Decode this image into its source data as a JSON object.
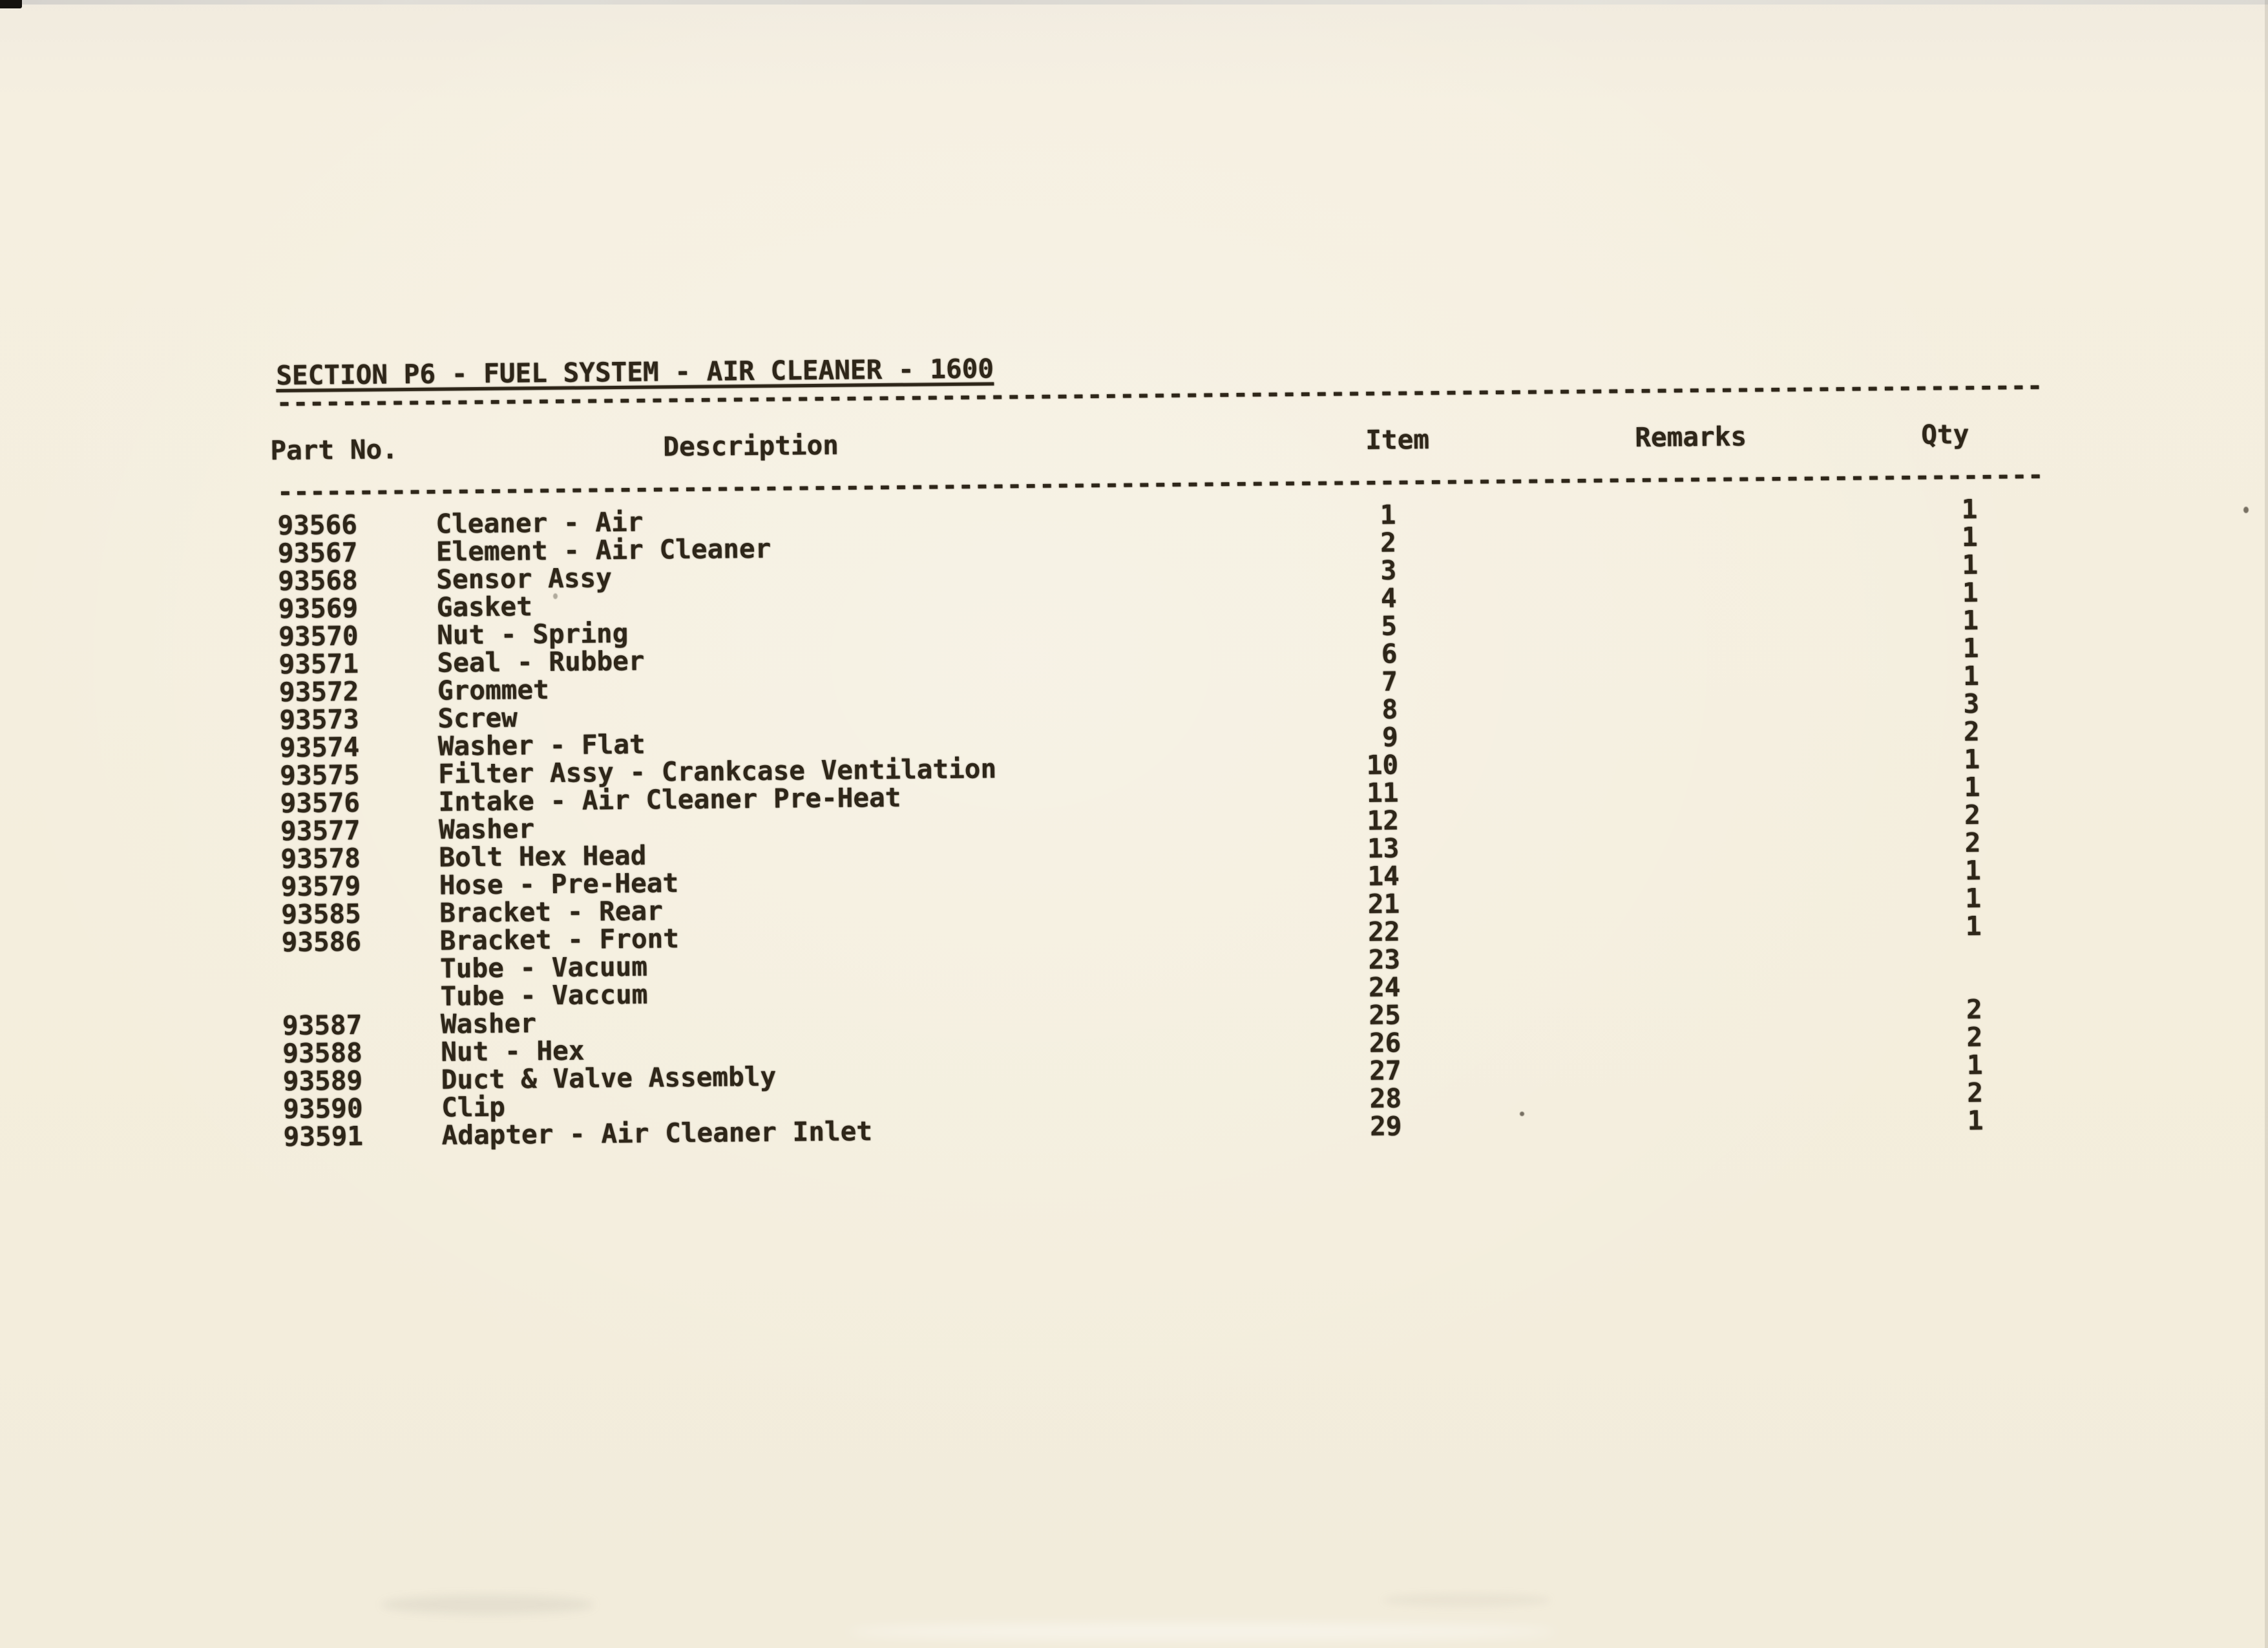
{
  "colors": {
    "paper": "#f4eede",
    "ink": "#2e2619"
  },
  "doc": {
    "title": "SECTION P6  -  FUEL SYSTEM - AIR CLEANER - 1600",
    "separator": "-------------------------------------------------------------------------------------------------------------"
  },
  "table": {
    "headers": {
      "part_no": "Part No.",
      "description": "Description",
      "item": "Item",
      "remarks": "Remarks",
      "qty": "Qty"
    },
    "rows": [
      {
        "part_no": "93566",
        "description": "Cleaner - Air",
        "item": "1",
        "remarks": "",
        "qty": "1"
      },
      {
        "part_no": "93567",
        "description": "Element - Air Cleaner",
        "item": "2",
        "remarks": "",
        "qty": "1"
      },
      {
        "part_no": "93568",
        "description": "Sensor Assy",
        "item": "3",
        "remarks": "",
        "qty": "1"
      },
      {
        "part_no": "93569",
        "description": "Gasket",
        "item": "4",
        "remarks": "",
        "qty": "1"
      },
      {
        "part_no": "93570",
        "description": "Nut - Spring",
        "item": "5",
        "remarks": "",
        "qty": "1"
      },
      {
        "part_no": "93571",
        "description": "Seal - Rubber",
        "item": "6",
        "remarks": "",
        "qty": "1"
      },
      {
        "part_no": "93572",
        "description": "Grommet",
        "item": "7",
        "remarks": "",
        "qty": "1"
      },
      {
        "part_no": "93573",
        "description": "Screw",
        "item": "8",
        "remarks": "",
        "qty": "3"
      },
      {
        "part_no": "93574",
        "description": "Washer - Flat",
        "item": "9",
        "remarks": "",
        "qty": "2"
      },
      {
        "part_no": "93575",
        "description": "Filter Assy - Crankcase Ventilation",
        "item": "10",
        "remarks": "",
        "qty": "1"
      },
      {
        "part_no": "93576",
        "description": "Intake - Air Cleaner Pre-Heat",
        "item": "11",
        "remarks": "",
        "qty": "1"
      },
      {
        "part_no": "93577",
        "description": "Washer",
        "item": "12",
        "remarks": "",
        "qty": "2"
      },
      {
        "part_no": "93578",
        "description": "Bolt Hex Head",
        "item": "13",
        "remarks": "",
        "qty": "2"
      },
      {
        "part_no": "93579",
        "description": "Hose - Pre-Heat",
        "item": "14",
        "remarks": "",
        "qty": "1"
      },
      {
        "part_no": "93585",
        "description": "Bracket - Rear",
        "item": "21",
        "remarks": "",
        "qty": "1"
      },
      {
        "part_no": "93586",
        "description": "Bracket - Front",
        "item": "22",
        "remarks": "",
        "qty": "1"
      },
      {
        "part_no": "",
        "description": "Tube - Vacuum",
        "item": "23",
        "remarks": "",
        "qty": ""
      },
      {
        "part_no": "",
        "description": "Tube - Vaccum",
        "item": "24",
        "remarks": "",
        "qty": ""
      },
      {
        "part_no": "93587",
        "description": "Washer",
        "item": "25",
        "remarks": "",
        "qty": "2"
      },
      {
        "part_no": "93588",
        "description": "Nut - Hex",
        "item": "26",
        "remarks": "",
        "qty": "2"
      },
      {
        "part_no": "93589",
        "description": "Duct & Valve Assembly",
        "item": "27",
        "remarks": "",
        "qty": "1"
      },
      {
        "part_no": "93590",
        "description": "Clip",
        "item": "28",
        "remarks": "",
        "qty": "2"
      },
      {
        "part_no": "93591",
        "description": "Adapter - Air Cleaner Inlet",
        "item": "29",
        "remarks": "",
        "qty": "1"
      }
    ]
  }
}
